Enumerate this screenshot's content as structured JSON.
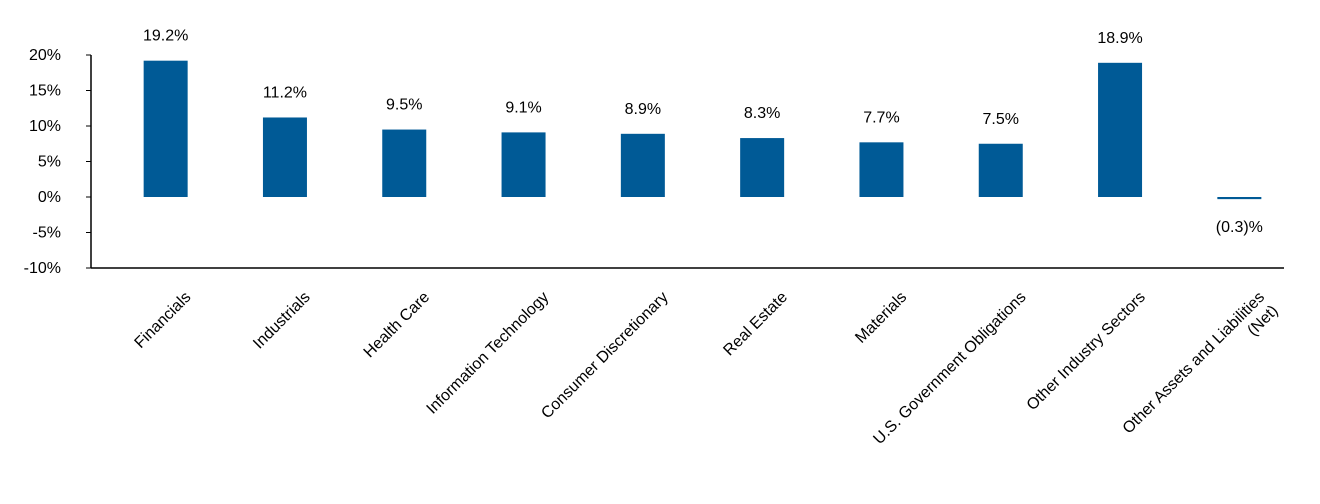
{
  "chart_data": {
    "type": "bar",
    "categories": [
      "Financials",
      "Industrials",
      "Health Care",
      "Information Technology",
      "Consumer Discretionary",
      "Real Estate",
      "Materials",
      "U.S. Government Obligations",
      "Other Industry Sectors",
      [
        "Other Assets and Liabilities",
        "(Net)"
      ]
    ],
    "values": [
      19.2,
      11.2,
      9.5,
      9.1,
      8.9,
      8.3,
      7.7,
      7.5,
      18.9,
      -0.3
    ],
    "data_labels": [
      "19.2%",
      "11.2%",
      "9.5%",
      "9.1%",
      "8.9%",
      "8.3%",
      "7.7%",
      "7.5%",
      "18.9%",
      "(0.3)%"
    ],
    "ylim": [
      -10,
      20
    ],
    "yticks": [
      20,
      15,
      10,
      5,
      0,
      -5,
      -10
    ],
    "ytick_labels": [
      "20%",
      "15%",
      "10%",
      "5%",
      "0%",
      "-5%",
      "-10%"
    ],
    "bar_color": "#005a96",
    "grid": false,
    "legend": "none"
  }
}
